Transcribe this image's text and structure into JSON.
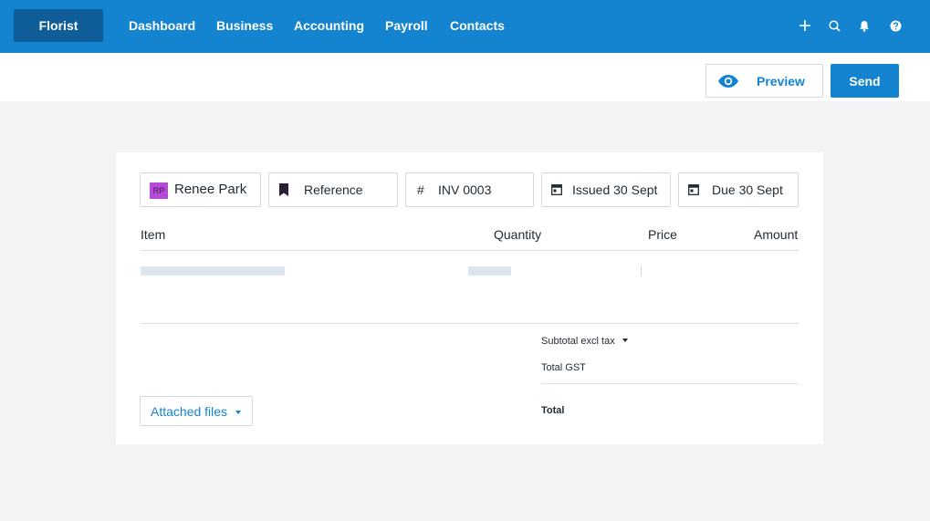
{
  "nav": {
    "org_name": "Florist",
    "links": [
      "Dashboard",
      "Business",
      "Accounting",
      "Payroll",
      "Contacts"
    ],
    "icons": [
      "plus-icon",
      "search-icon",
      "bell-icon",
      "help-icon"
    ]
  },
  "actions": {
    "preview_label": "Preview",
    "send_label": "Send"
  },
  "invoice": {
    "contact": {
      "initials": "RP",
      "name": "Renee Park"
    },
    "reference_placeholder": "Reference",
    "number_prefix": "#",
    "number": "INV 0003",
    "issued": "Issued 30 Sept",
    "due": "Due 30 Sept"
  },
  "table": {
    "columns": [
      "Item",
      "Quantity",
      "Price",
      "Amount"
    ]
  },
  "summary": {
    "subtotal_label": "Subtotal excl tax",
    "gst_label": "Total GST",
    "total_label": "Total"
  },
  "attached_files_label": "Attached files",
  "colors": {
    "brand": "#1483d0",
    "brand_dark": "#0f5d99",
    "avatar": "#b44ad5"
  }
}
